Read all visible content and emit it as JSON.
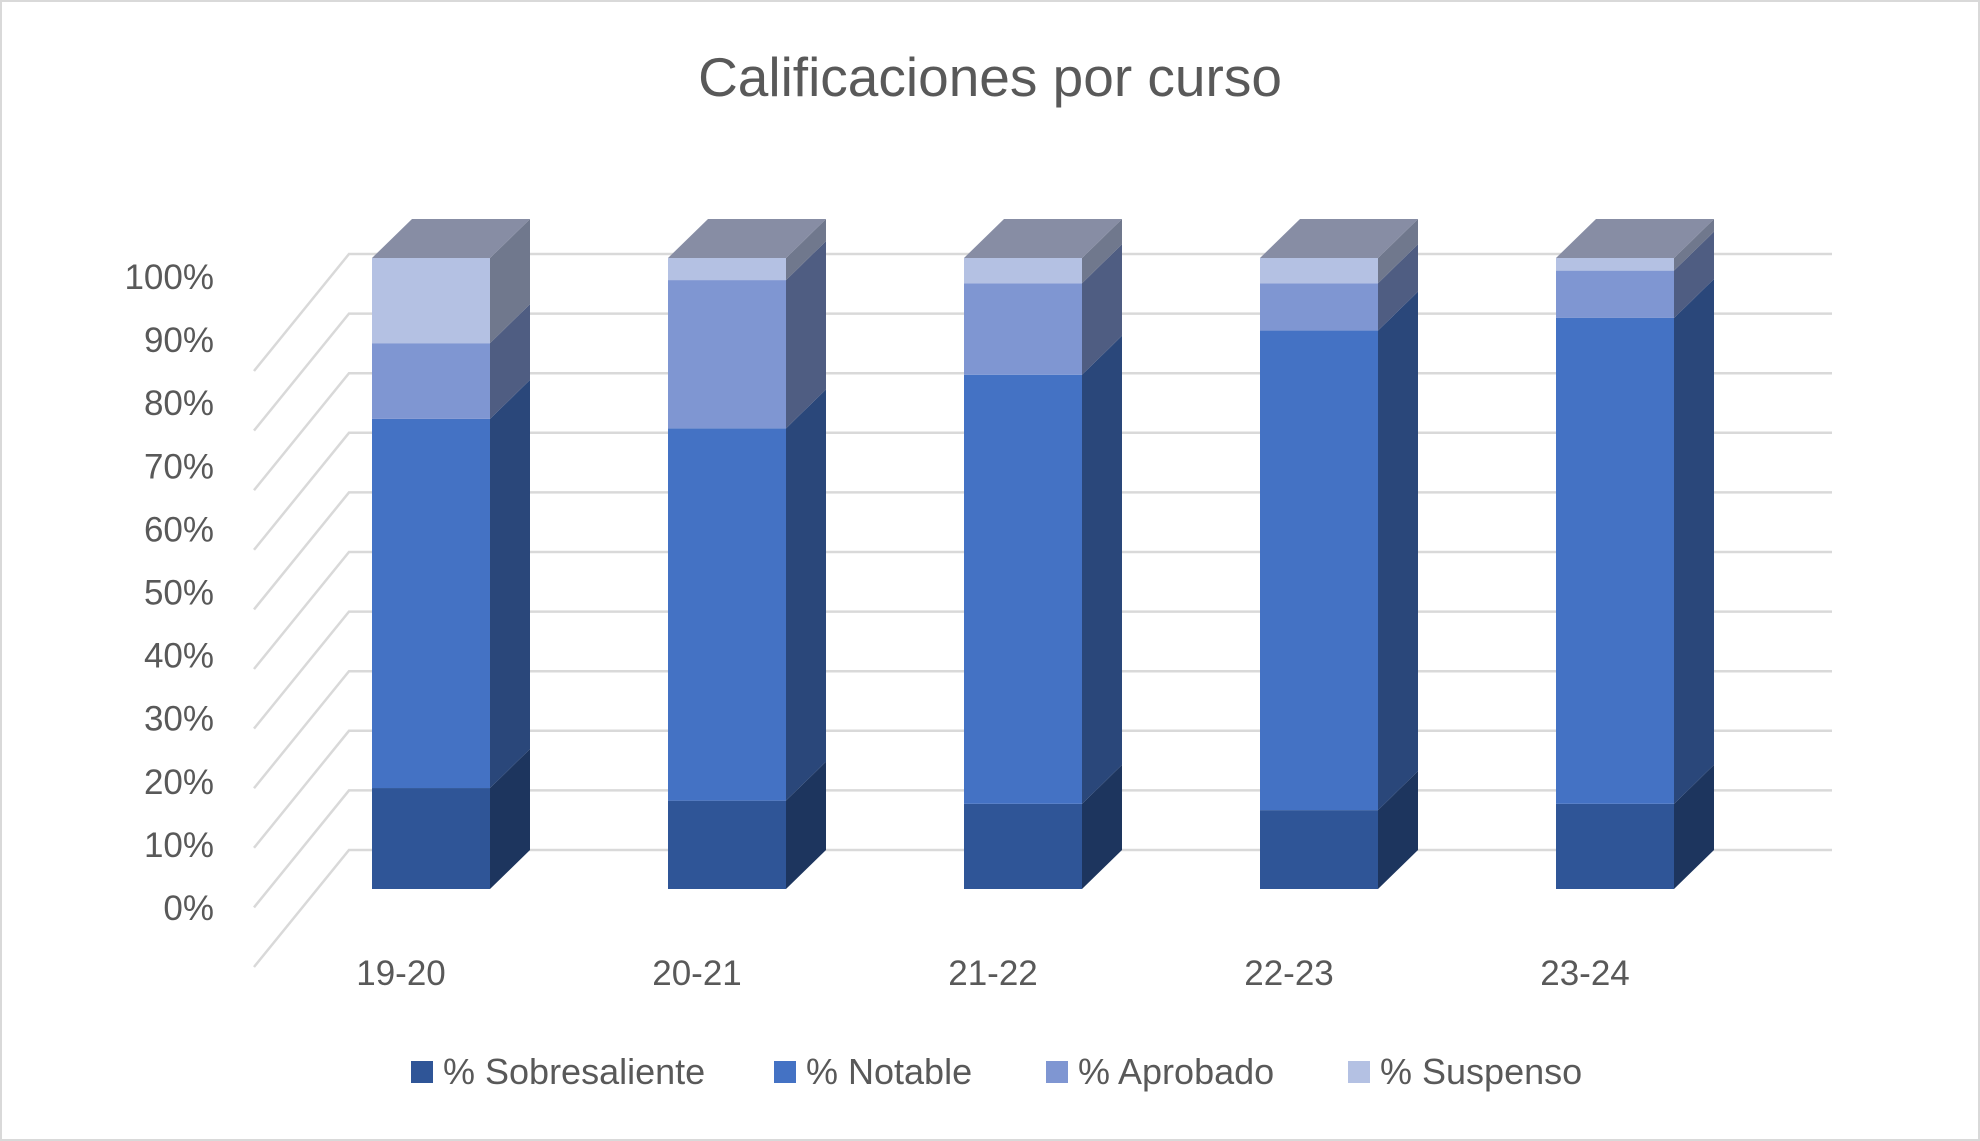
{
  "chart_data": {
    "type": "bar",
    "stacked": true,
    "percent_stacked": true,
    "three_d": true,
    "title": "Calificaciones por curso",
    "xlabel": "",
    "ylabel": "",
    "categories": [
      "19-20",
      "20-21",
      "21-22",
      "22-23",
      "23-24"
    ],
    "y_ticks": [
      "0%",
      "10%",
      "20%",
      "30%",
      "40%",
      "50%",
      "60%",
      "70%",
      "80%",
      "90%",
      "100%"
    ],
    "ylim": [
      0,
      100
    ],
    "grid": true,
    "legend_position": "bottom",
    "series": [
      {
        "name": "% Sobresaliente",
        "values": [
          16,
          14,
          13.5,
          12.5,
          13.5
        ],
        "color": "#2f5597"
      },
      {
        "name": "% Notable",
        "values": [
          58.5,
          59,
          68,
          76,
          77
        ],
        "color": "#4472c4"
      },
      {
        "name": "% Aprobado",
        "values": [
          12,
          23.5,
          14.5,
          7.5,
          7.5
        ],
        "color": "#7f96d2"
      },
      {
        "name": "% Suspenso",
        "values": [
          13.5,
          3.5,
          4,
          4,
          2
        ],
        "color": "#b4c1e3"
      }
    ]
  }
}
